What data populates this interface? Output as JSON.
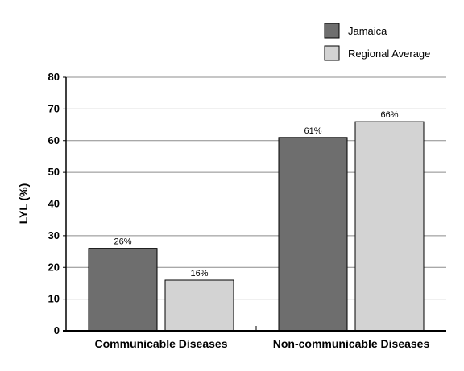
{
  "chart_data": {
    "type": "bar",
    "categories": [
      "Communicable Diseases",
      "Non-communicable Diseases"
    ],
    "series": [
      {
        "name": "Jamaica",
        "values": [
          26,
          61
        ],
        "labels": [
          "26%",
          "61%"
        ],
        "color": "#6e6e6e"
      },
      {
        "name": "Regional Average",
        "values": [
          16,
          66
        ],
        "labels": [
          "16%",
          "66%"
        ],
        "color": "#d3d3d3"
      }
    ],
    "title": "",
    "xlabel": "",
    "ylabel": "LYL (%)",
    "ylim": [
      0,
      80
    ],
    "yticks": [
      0,
      10,
      20,
      30,
      40,
      50,
      60,
      70,
      80
    ],
    "grid": true,
    "legend_position": "top-right"
  }
}
